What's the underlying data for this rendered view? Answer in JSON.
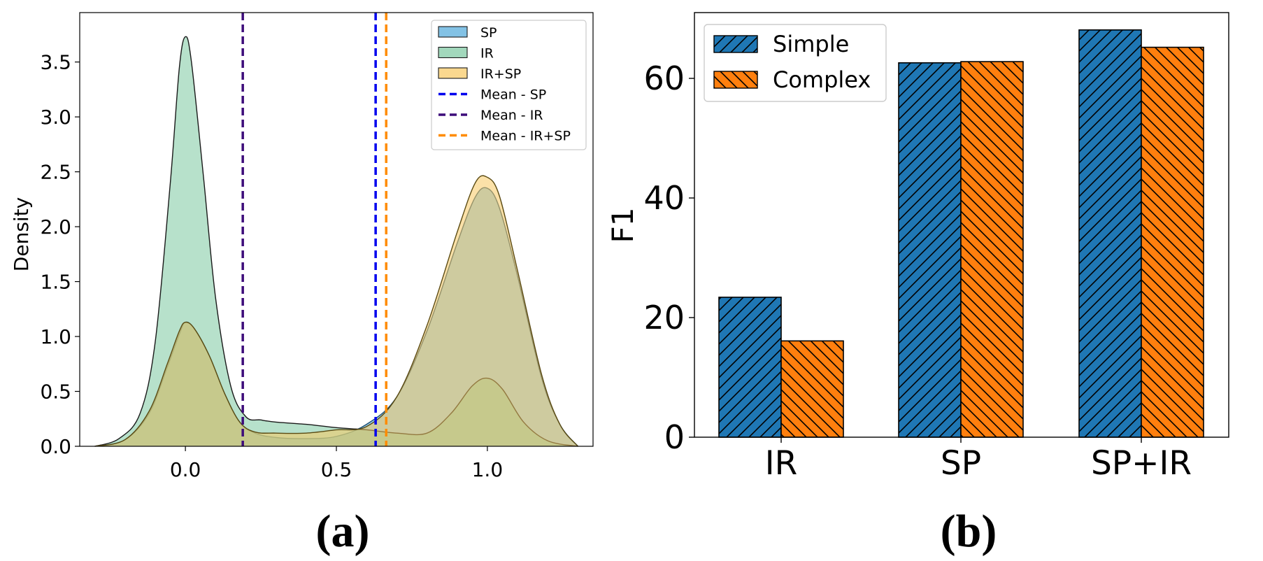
{
  "chart_data": [
    {
      "type": "density",
      "caption": "(a)",
      "xlabel": "",
      "ylabel": "Density",
      "xlim": [
        -0.35,
        1.35
      ],
      "ylim": [
        0,
        3.95
      ],
      "x_ticks": [
        {
          "value": 0.0,
          "label": "0.0"
        },
        {
          "value": 0.5,
          "label": "0.5"
        },
        {
          "value": 1.0,
          "label": "1.0"
        }
      ],
      "y_ticks": [
        {
          "value": 0.0,
          "label": "0.0"
        },
        {
          "value": 0.5,
          "label": "0.5"
        },
        {
          "value": 1.0,
          "label": "1.0"
        },
        {
          "value": 1.5,
          "label": "1.5"
        },
        {
          "value": 2.0,
          "label": "2.0"
        },
        {
          "value": 2.5,
          "label": "2.5"
        },
        {
          "value": 3.0,
          "label": "3.0"
        },
        {
          "value": 3.5,
          "label": "3.5"
        }
      ],
      "legend_position": "top-right",
      "series": [
        {
          "name": "SP",
          "fill": "#5aaedc",
          "fill_opacity": 0.6,
          "stroke": "#1d4f73",
          "points": [
            [
              -0.3,
              0
            ],
            [
              -0.2,
              0.06
            ],
            [
              -0.12,
              0.3
            ],
            [
              -0.06,
              0.72
            ],
            [
              -0.02,
              1.02
            ],
            [
              0,
              1.13
            ],
            [
              0.03,
              1.07
            ],
            [
              0.08,
              0.82
            ],
            [
              0.13,
              0.48
            ],
            [
              0.18,
              0.22
            ],
            [
              0.23,
              0.12
            ],
            [
              0.3,
              0.08
            ],
            [
              0.4,
              0.07
            ],
            [
              0.5,
              0.09
            ],
            [
              0.6,
              0.2
            ],
            [
              0.7,
              0.45
            ],
            [
              0.8,
              1.05
            ],
            [
              0.9,
              1.85
            ],
            [
              0.96,
              2.27
            ],
            [
              1.0,
              2.35
            ],
            [
              1.04,
              2.17
            ],
            [
              1.1,
              1.55
            ],
            [
              1.18,
              0.62
            ],
            [
              1.24,
              0.2
            ],
            [
              1.3,
              0
            ]
          ]
        },
        {
          "name": "IR",
          "fill": "#7bc8a0",
          "fill_opacity": 0.55,
          "stroke": "#1a1a1a",
          "points": [
            [
              -0.3,
              0
            ],
            [
              -0.22,
              0.07
            ],
            [
              -0.15,
              0.3
            ],
            [
              -0.1,
              0.95
            ],
            [
              -0.05,
              2.4
            ],
            [
              -0.02,
              3.45
            ],
            [
              0,
              3.73
            ],
            [
              0.02,
              3.5
            ],
            [
              0.06,
              2.45
            ],
            [
              0.1,
              1.35
            ],
            [
              0.15,
              0.55
            ],
            [
              0.2,
              0.27
            ],
            [
              0.25,
              0.24
            ],
            [
              0.3,
              0.22
            ],
            [
              0.4,
              0.2
            ],
            [
              0.5,
              0.17
            ],
            [
              0.6,
              0.15
            ],
            [
              0.7,
              0.12
            ],
            [
              0.8,
              0.12
            ],
            [
              0.88,
              0.3
            ],
            [
              0.95,
              0.55
            ],
            [
              1.0,
              0.62
            ],
            [
              1.05,
              0.52
            ],
            [
              1.12,
              0.22
            ],
            [
              1.2,
              0.05
            ],
            [
              1.3,
              0
            ]
          ]
        },
        {
          "name": "IR+SP",
          "fill": "#f8c860",
          "fill_opacity": 0.55,
          "stroke": "#5a4a12",
          "points": [
            [
              -0.3,
              0
            ],
            [
              -0.2,
              0.06
            ],
            [
              -0.12,
              0.32
            ],
            [
              -0.06,
              0.75
            ],
            [
              -0.02,
              1.05
            ],
            [
              0,
              1.13
            ],
            [
              0.03,
              1.07
            ],
            [
              0.08,
              0.82
            ],
            [
              0.13,
              0.48
            ],
            [
              0.18,
              0.22
            ],
            [
              0.23,
              0.13
            ],
            [
              0.3,
              0.12
            ],
            [
              0.4,
              0.12
            ],
            [
              0.5,
              0.15
            ],
            [
              0.6,
              0.18
            ],
            [
              0.7,
              0.45
            ],
            [
              0.8,
              1.1
            ],
            [
              0.9,
              1.95
            ],
            [
              0.96,
              2.4
            ],
            [
              1.0,
              2.45
            ],
            [
              1.04,
              2.28
            ],
            [
              1.1,
              1.6
            ],
            [
              1.18,
              0.65
            ],
            [
              1.24,
              0.2
            ],
            [
              1.3,
              0
            ]
          ]
        }
      ],
      "mean_lines": [
        {
          "name": "Mean - SP",
          "x": 0.63,
          "color": "#0000ee"
        },
        {
          "name": "Mean - IR",
          "x": 0.19,
          "color": "#3d0c7a"
        },
        {
          "name": "Mean - IR+SP",
          "x": 0.665,
          "color": "#ff8c00"
        }
      ]
    },
    {
      "type": "bar",
      "caption": "(b)",
      "xlabel": "",
      "ylabel": "F1",
      "ylim": [
        0,
        71
      ],
      "y_ticks": [
        0,
        20,
        40,
        60
      ],
      "categories": [
        "IR",
        "SP",
        "SP+IR"
      ],
      "legend_position": "top-left",
      "series": [
        {
          "name": "Simple",
          "color": "#1f77b4",
          "hatch": "forward",
          "values": [
            23.4,
            62.6,
            68.1
          ]
        },
        {
          "name": "Complex",
          "color": "#ff7f0e",
          "hatch": "back",
          "values": [
            16.1,
            62.8,
            65.2
          ]
        }
      ]
    }
  ]
}
